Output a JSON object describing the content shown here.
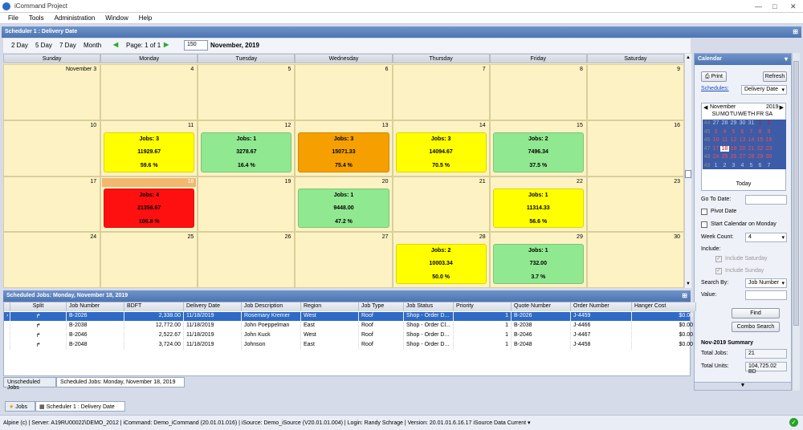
{
  "app": {
    "title": "iCommand Project"
  },
  "menu": [
    "File",
    "Tools",
    "Administration",
    "Window",
    "Help"
  ],
  "scheduler": {
    "panel_title": "Scheduler 1 : Delivery Date",
    "views": [
      "2 Day",
      "5 Day",
      "7 Day",
      "Month"
    ],
    "page_label": "Page: 1 of 1",
    "page_size": "150",
    "month_label": "November, 2019",
    "weekdays": [
      "Sunday",
      "Monday",
      "Tuesday",
      "Wednesday",
      "Thursday",
      "Friday",
      "Saturday"
    ],
    "weeks": [
      [
        "November 3",
        "4",
        "5",
        "6",
        "7",
        "8",
        "9"
      ],
      [
        "10",
        "11",
        "12",
        "13",
        "14",
        "15",
        "16"
      ],
      [
        "17",
        "18",
        "19",
        "20",
        "21",
        "22",
        "23"
      ],
      [
        "24",
        "25",
        "26",
        "27",
        "28",
        "29",
        "30"
      ]
    ],
    "jobs": [
      {
        "week": 1,
        "day": 1,
        "title": "Jobs: 3",
        "value": "11929.67",
        "pct": "59.6 %",
        "color": "#ffff00"
      },
      {
        "week": 1,
        "day": 2,
        "title": "Jobs: 1",
        "value": "3278.67",
        "pct": "16.4 %",
        "color": "#90e890"
      },
      {
        "week": 1,
        "day": 3,
        "title": "Jobs: 3",
        "value": "15071.33",
        "pct": "75.4 %",
        "color": "#f5a000"
      },
      {
        "week": 1,
        "day": 4,
        "title": "Jobs: 3",
        "value": "14094.67",
        "pct": "70.5 %",
        "color": "#ffff00"
      },
      {
        "week": 1,
        "day": 5,
        "title": "Jobs: 2",
        "value": "7496.34",
        "pct": "37.5 %",
        "color": "#90e890"
      },
      {
        "week": 2,
        "day": 1,
        "title": "Jobs: 4",
        "value": "21356.67",
        "pct": "106.8 %",
        "color": "#ff1010"
      },
      {
        "week": 2,
        "day": 3,
        "title": "Jobs: 1",
        "value": "9448.00",
        "pct": "47.2 %",
        "color": "#90e890"
      },
      {
        "week": 2,
        "day": 5,
        "title": "Jobs: 1",
        "value": "11314.33",
        "pct": "56.6 %",
        "color": "#ffff00"
      },
      {
        "week": 3,
        "day": 4,
        "title": "Jobs: 2",
        "value": "10003.34",
        "pct": "50.0 %",
        "color": "#ffff00"
      },
      {
        "week": 3,
        "day": 5,
        "title": "Jobs: 1",
        "value": "732.00",
        "pct": "3.7 %",
        "color": "#90e890"
      }
    ]
  },
  "calendar_panel": {
    "title": "Calendar",
    "print": "Print",
    "refresh": "Refresh",
    "schedules_link": "Schedules:",
    "schedules_value": "Delivery Date",
    "mini_month": "November",
    "mini_year": "2019",
    "mini_days": [
      "SU",
      "MO",
      "TU",
      "WE",
      "TH",
      "FR",
      "SA"
    ],
    "mini_weeks": [
      {
        "wk": "44",
        "d": [
          "27",
          "28",
          "29",
          "30",
          "31",
          "1",
          "2"
        ]
      },
      {
        "wk": "45",
        "d": [
          "3",
          "4",
          "5",
          "6",
          "7",
          "8",
          "9"
        ]
      },
      {
        "wk": "46",
        "d": [
          "10",
          "11",
          "12",
          "13",
          "14",
          "15",
          "16"
        ]
      },
      {
        "wk": "47",
        "d": [
          "17",
          "18",
          "19",
          "20",
          "21",
          "22",
          "23"
        ]
      },
      {
        "wk": "48",
        "d": [
          "24",
          "25",
          "26",
          "27",
          "28",
          "29",
          "30"
        ]
      },
      {
        "wk": "49",
        "d": [
          "1",
          "2",
          "3",
          "4",
          "5",
          "6",
          "7"
        ]
      }
    ],
    "today": "Today",
    "goto_label": "Go To Date:",
    "pivot": "Pivot Date",
    "start_monday": "Start Calendar on Monday",
    "week_count_label": "Week Count:",
    "week_count": "4",
    "include_label": "Include:",
    "inc_sat": "Include Saturday",
    "inc_sun": "Include Sunday",
    "search_by_label": "Search By:",
    "search_by": "Job Number",
    "value_label": "Value:",
    "find": "Find",
    "combo": "Combo Search",
    "summary_title": "Nov-2019 Summary",
    "total_jobs_label": "Total Jobs:",
    "total_jobs": "21",
    "total_units_label": "Total Units:",
    "total_units": "104,725.02 BD"
  },
  "grid": {
    "title": "Scheduled Jobs: Monday, November 18, 2019",
    "columns": [
      "Split",
      "Job Number",
      "BDFT",
      "Delivery Date",
      "Job Description",
      "Region",
      "Job Type",
      "Job Status",
      "Priority",
      "Quote Number",
      "Order Number",
      "Hanger Cost"
    ],
    "rows": [
      [
        "B-2026",
        "2,338.00",
        "11/18/2019",
        "Rosemary Kremer",
        "West",
        "Roof",
        "Shop - Order D...",
        "1",
        "B-2026",
        "J-4459",
        "$0.00"
      ],
      [
        "B-2038",
        "12,772.00",
        "11/18/2019",
        "John Poeppelman",
        "East",
        "Roof",
        "Shop - Order Cl...",
        "1",
        "B-2038",
        "J-4466",
        "$0.00"
      ],
      [
        "B-2046",
        "2,522.67",
        "11/18/2019",
        "John Kuck",
        "West",
        "Roof",
        "Shop - Order D...",
        "1",
        "B-2046",
        "J-4467",
        "$0.00"
      ],
      [
        "B-2048",
        "3,724.00",
        "11/18/2019",
        "Johnson",
        "East",
        "Roof",
        "Shop - Order D...",
        "1",
        "B-2048",
        "J-4458",
        "$0.00"
      ]
    ],
    "tabs": [
      "Unscheduled Jobs",
      "Scheduled Jobs: Monday, November 18, 2019"
    ]
  },
  "bottom_tabs": [
    "Jobs",
    "Scheduler 1 : Delivery Date"
  ],
  "status": "Alpine (c)  |  Server: A19RU00022\\DEMO_2012  |  iCommand: Demo_iCommand (20.01.01.016)  |  iSource: Demo_iSource (V20.01.01.004)  |  Login: Randy Schrage  |  Version: 20.01.01.6.16.17    iSource Data Current ▾"
}
